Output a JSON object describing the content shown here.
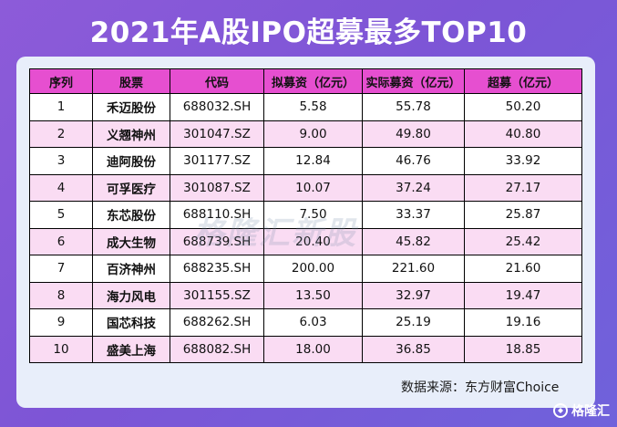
{
  "title": "2021年A股IPO超募最多TOP10",
  "source": "数据来源：东方财富Choice",
  "watermark": "格隆汇新股",
  "brand": "格隆汇",
  "colors": {
    "background": "#8d5bd9",
    "header": "#e64fd0",
    "row_even": "#fadcf3",
    "row_odd": "#ffffff",
    "card": "#e8eefa"
  },
  "chart_data": {
    "type": "table",
    "columns": [
      "序列",
      "股票",
      "代码",
      "拟募资（亿元）",
      "实际募资（亿元）",
      "超募（亿元）"
    ],
    "rows": [
      [
        "1",
        "禾迈股份",
        "688032.SH",
        "5.58",
        "55.78",
        "50.20"
      ],
      [
        "2",
        "义翘神州",
        "301047.SZ",
        "9.00",
        "49.80",
        "40.80"
      ],
      [
        "3",
        "迪阿股份",
        "301177.SZ",
        "12.84",
        "46.76",
        "33.92"
      ],
      [
        "4",
        "可孚医疗",
        "301087.SZ",
        "10.07",
        "37.24",
        "27.17"
      ],
      [
        "5",
        "东芯股份",
        "688110.SH",
        "7.50",
        "33.37",
        "25.87"
      ],
      [
        "6",
        "成大生物",
        "688739.SH",
        "20.40",
        "45.82",
        "25.42"
      ],
      [
        "7",
        "百济神州",
        "688235.SH",
        "200.00",
        "221.60",
        "21.60"
      ],
      [
        "8",
        "海力风电",
        "301155.SZ",
        "13.50",
        "32.97",
        "19.47"
      ],
      [
        "9",
        "国芯科技",
        "688262.SH",
        "6.03",
        "25.19",
        "19.16"
      ],
      [
        "10",
        "盛美上海",
        "688082.SH",
        "18.00",
        "36.85",
        "18.85"
      ]
    ]
  }
}
